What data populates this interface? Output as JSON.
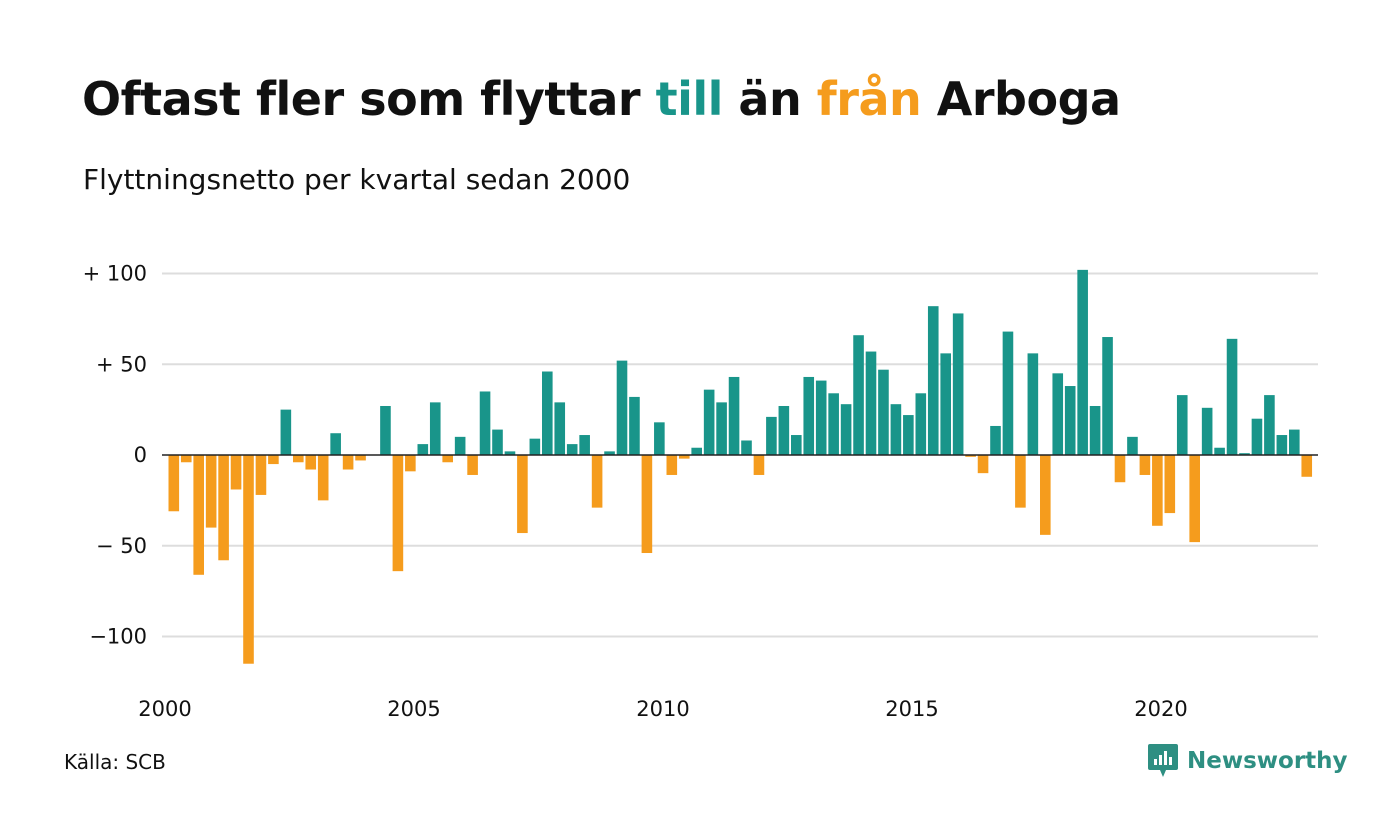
{
  "header": {
    "title_part1": "Oftast fler som flyttar ",
    "title_highlight_to": "till",
    "title_part2": " än ",
    "title_highlight_from": "från",
    "title_part3": " Arboga",
    "subtitle": "Flyttningsnetto per kvartal sedan 2000"
  },
  "footer": {
    "source": "Källa: SCB",
    "brand": "Newsworthy"
  },
  "colors": {
    "positive": "#19958a",
    "negative": "#f59c1d",
    "grid": "#dddddd",
    "text": "#111111"
  },
  "icons": {
    "brand_logo": "bar-chart-speech-bubble-icon"
  },
  "chart_data": {
    "type": "bar",
    "ylim": [
      -115,
      102
    ],
    "y_ticks": [
      {
        "value": 100,
        "label": "+ 100"
      },
      {
        "value": 50,
        "label": "+  50"
      },
      {
        "value": 0,
        "label": "0"
      },
      {
        "value": -50,
        "label": "− 50"
      },
      {
        "value": -100,
        "label": "−100"
      }
    ],
    "x_ticks": [
      "2000",
      "2005",
      "2010",
      "2015",
      "2020"
    ],
    "start": "2000 Q1",
    "values": [
      -31,
      -4,
      -66,
      -40,
      -58,
      -19,
      -115,
      -22,
      -5,
      25,
      -4,
      -8,
      -25,
      12,
      -8,
      -3,
      0,
      27,
      -64,
      -9,
      6,
      29,
      -4,
      10,
      -11,
      35,
      14,
      2,
      -43,
      9,
      46,
      29,
      6,
      11,
      -29,
      2,
      52,
      32,
      -54,
      18,
      -11,
      -2,
      4,
      36,
      29,
      43,
      8,
      -11,
      21,
      27,
      11,
      43,
      41,
      34,
      28,
      66,
      57,
      47,
      28,
      22,
      34,
      82,
      56,
      78,
      -1,
      -10,
      16,
      68,
      -29,
      56,
      -44,
      45,
      38,
      102,
      27,
      65,
      -15,
      10,
      -11,
      -39,
      -32,
      33,
      -48,
      26,
      4,
      64,
      1,
      20,
      33,
      11,
      14,
      -12
    ]
  }
}
